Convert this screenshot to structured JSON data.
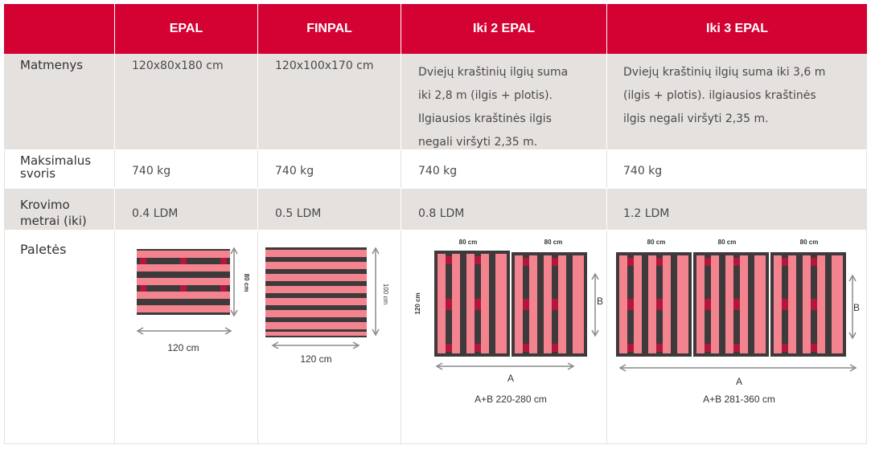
{
  "headers": [
    "EPAL",
    "FINPAL",
    "Iki 2 EPAL",
    "Iki 3 EPAL"
  ],
  "rows": {
    "matmenys": {
      "label": "Matmenys",
      "values": [
        "120x80x180 cm",
        "120x100x170 cm"
      ],
      "iki2_lines": [
        "Dviejų kraštinių ilgių suma",
        "iki 2,8 m (ilgis + plotis).",
        "Ilgiausios kraštinės ilgis",
        "negali viršyti 2,35 m."
      ],
      "iki3_lines": [
        "Dviejų kraštinių ilgių suma iki 3,6 m",
        "(ilgis + plotis). ilgiausios kraštinės",
        "ilgis negali viršyti 2,35 m."
      ]
    },
    "svoris": {
      "label_line1": "Maksimalus",
      "label_line2": "svoris",
      "values": [
        "740 kg",
        "740 kg",
        "740 kg",
        "740 kg"
      ]
    },
    "krovimo": {
      "label_line1": "Krovimo",
      "label_line2": "metrai (iki)",
      "values": [
        "0.4 LDM",
        "0.5 LDM",
        "0.8 LDM",
        "1.2 LDM"
      ]
    },
    "paletes": {
      "label": "Paletės"
    }
  },
  "diagrams": {
    "epal": {
      "width_label": "120 cm",
      "height_label": "80 cm"
    },
    "finpal": {
      "width_label": "120 cm",
      "height_label": "100 cm"
    },
    "iki2": {
      "pallet_width_labels": [
        "80 cm",
        "80 cm"
      ],
      "length_label": "120 cm",
      "b_label": "B",
      "a_label": "A",
      "range_label": "A+B 220-280 cm"
    },
    "iki3": {
      "pallet_width_labels": [
        "80 cm",
        "80 cm",
        "80 cm"
      ],
      "b_label": "B",
      "a_label": "A",
      "range_label": "A+B 281-360 cm"
    }
  },
  "colors": {
    "header_red": "#d40233",
    "row_gray": "#e5e1de",
    "pallet_pink": "#f3848f",
    "pallet_dark": "#3e3a3b",
    "pallet_crimson": "#b1173a",
    "arrow_gray": "#8a8a8a"
  }
}
